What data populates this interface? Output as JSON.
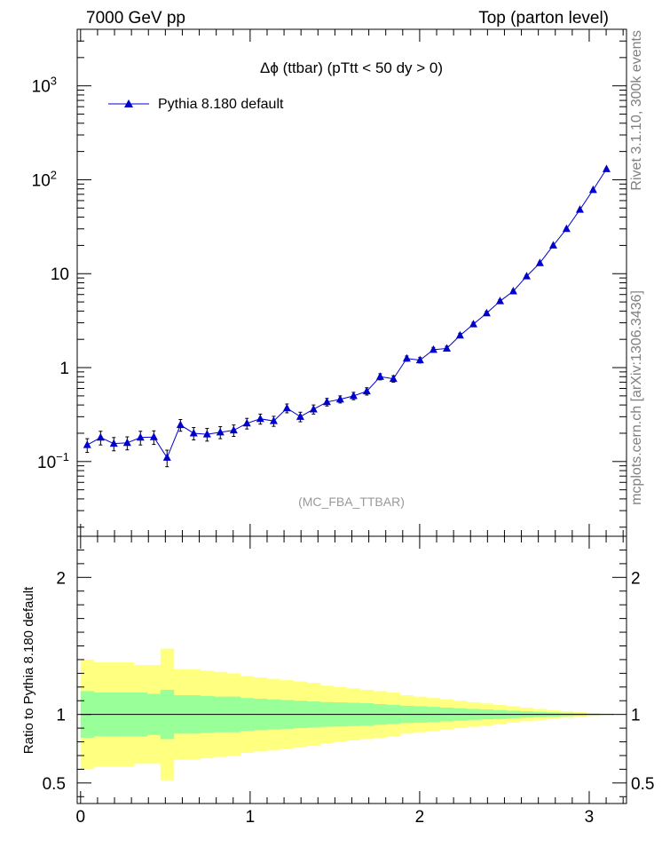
{
  "header": {
    "left": "7000 GeV pp",
    "right": "Top (parton level)"
  },
  "side_labels": {
    "rivet": "Rivet 3.1.10,  300k events",
    "mcplots": "mcplots.cern.ch [arXiv:1306.3436]"
  },
  "chart_data": [
    {
      "type": "scatter",
      "title": "Δϕ (ttbar) (pTtt < 50 dy > 0)",
      "watermark": "(MC_FBA_TTBAR)",
      "ylim": [
        0.016,
        4000
      ],
      "xlim": [
        -0.02,
        3.22
      ],
      "log_y": true,
      "y_tick_labels": [
        "10−1",
        "1",
        "10",
        "10²",
        "10³"
      ],
      "legend_position": "top-left",
      "series": [
        {
          "name": "Pythia 8.180 default",
          "color": "#0000cc",
          "marker": "triangle",
          "x": [
            0.039,
            0.118,
            0.196,
            0.275,
            0.353,
            0.432,
            0.51,
            0.589,
            0.667,
            0.746,
            0.824,
            0.903,
            0.981,
            1.06,
            1.139,
            1.217,
            1.296,
            1.374,
            1.453,
            1.531,
            1.61,
            1.688,
            1.767,
            1.845,
            1.924,
            2.002,
            2.081,
            2.16,
            2.238,
            2.317,
            2.395,
            2.474,
            2.552,
            2.631,
            2.709,
            2.788,
            2.866,
            2.945,
            3.023,
            3.102
          ],
          "y": [
            0.15,
            0.18,
            0.155,
            0.158,
            0.18,
            0.182,
            0.11,
            0.245,
            0.2,
            0.195,
            0.205,
            0.215,
            0.255,
            0.285,
            0.27,
            0.37,
            0.3,
            0.36,
            0.43,
            0.46,
            0.5,
            0.56,
            0.8,
            0.76,
            1.25,
            1.2,
            1.55,
            1.6,
            2.2,
            2.9,
            3.8,
            5.1,
            6.5,
            9.4,
            13,
            20,
            30,
            48,
            78,
            130
          ],
          "y_err": [
            0.025,
            0.03,
            0.025,
            0.025,
            0.03,
            0.03,
            0.022,
            0.035,
            0.03,
            0.03,
            0.03,
            0.03,
            0.033,
            0.035,
            0.033,
            0.04,
            0.035,
            0.04,
            0.04,
            0.04,
            0.045,
            0.05,
            0.06,
            0.06,
            0.08,
            0.08,
            0.09,
            0.09,
            0.12,
            0.14,
            0.17,
            0.2,
            0.25,
            0.3,
            0.4,
            0.55,
            0.7,
            1.0,
            1.4,
            2.0
          ]
        }
      ]
    },
    {
      "type": "area",
      "ylabel": "Ratio to Pythia 8.180 default",
      "ylim": [
        0.35,
        2.3
      ],
      "xlim": [
        -0.02,
        3.22
      ],
      "x_tick_labels": [
        "0",
        "1",
        "2",
        "3"
      ],
      "y_tick_labels": [
        "0.5",
        "1",
        "2"
      ],
      "reference_line": 1,
      "bin_edges": [
        0.0,
        0.0785,
        0.157,
        0.2355,
        0.314,
        0.3925,
        0.471,
        0.5495,
        0.628,
        0.7065,
        0.785,
        0.8635,
        0.942,
        1.0205,
        1.099,
        1.1775,
        1.256,
        1.3345,
        1.413,
        1.4915,
        1.57,
        1.6485,
        1.727,
        1.8055,
        1.884,
        1.9625,
        2.041,
        2.1195,
        2.198,
        2.2765,
        2.355,
        2.4335,
        2.512,
        2.5905,
        2.669,
        2.7475,
        2.826,
        2.9045,
        2.983,
        3.0615,
        3.14
      ],
      "bands": [
        {
          "name": "stat",
          "color": "#99ff99",
          "half_width": [
            0.17,
            0.16,
            0.16,
            0.16,
            0.16,
            0.15,
            0.18,
            0.14,
            0.14,
            0.135,
            0.13,
            0.13,
            0.12,
            0.115,
            0.11,
            0.105,
            0.1,
            0.095,
            0.09,
            0.088,
            0.085,
            0.082,
            0.075,
            0.07,
            0.063,
            0.06,
            0.055,
            0.05,
            0.045,
            0.04,
            0.036,
            0.032,
            0.027,
            0.023,
            0.019,
            0.015,
            0.012,
            0.009,
            0.006,
            0.004
          ]
        },
        {
          "name": "total",
          "color": "#ffff80",
          "half_width": [
            0.4,
            0.38,
            0.38,
            0.38,
            0.36,
            0.36,
            0.48,
            0.33,
            0.33,
            0.32,
            0.31,
            0.3,
            0.28,
            0.27,
            0.26,
            0.25,
            0.24,
            0.23,
            0.21,
            0.2,
            0.19,
            0.18,
            0.17,
            0.16,
            0.14,
            0.13,
            0.12,
            0.11,
            0.1,
            0.09,
            0.08,
            0.07,
            0.06,
            0.05,
            0.04,
            0.032,
            0.024,
            0.017,
            0.011,
            0.006
          ]
        }
      ]
    }
  ]
}
